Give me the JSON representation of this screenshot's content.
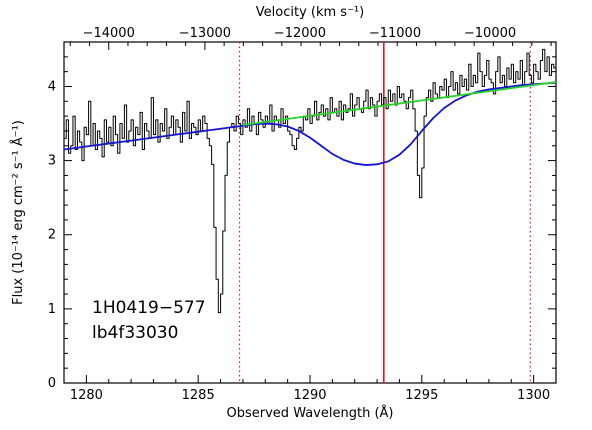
{
  "chart_data": {
    "type": "line",
    "xlabel": "Observed Wavelength (Å)",
    "ylabel": "Flux (10⁻¹⁴ erg cm⁻² s⁻¹ Å⁻¹)",
    "top_axis_label": "Velocity (km s⁻¹)",
    "xlim": [
      1279,
      1301
    ],
    "ylim": [
      0,
      4.6
    ],
    "x_ticks": [
      1280,
      1285,
      1290,
      1295,
      1300
    ],
    "y_ticks": [
      0,
      1,
      2,
      3,
      4
    ],
    "top_ticks": [
      {
        "label": "−14000",
        "x": 1281.0
      },
      {
        "label": "−13000",
        "x": 1285.3
      },
      {
        "label": "−12000",
        "x": 1289.55
      },
      {
        "label": "−11000",
        "x": 1293.8
      },
      {
        "label": "−10000",
        "x": 1298.05
      }
    ],
    "annotations": [
      "1H0419−577",
      "lb4f33030"
    ],
    "vertical_lines": [
      {
        "x": 1293.3,
        "style": "solid",
        "color": "#e8141e"
      },
      {
        "x": 1286.85,
        "style": "dotted",
        "color": "#e8141e"
      },
      {
        "x": 1299.85,
        "style": "dotted",
        "color": "#e8141e"
      }
    ],
    "series": [
      {
        "role": "spectrum",
        "color": "#000000",
        "step": true,
        "x": [
          1279.0,
          1279.1,
          1279.2,
          1279.3,
          1279.4,
          1279.5,
          1279.6,
          1279.7,
          1279.8,
          1279.9,
          1280.0,
          1280.1,
          1280.2,
          1280.3,
          1280.4,
          1280.5,
          1280.6,
          1280.7,
          1280.8,
          1280.9,
          1281.0,
          1281.1,
          1281.2,
          1281.3,
          1281.4,
          1281.5,
          1281.6,
          1281.7,
          1281.8,
          1281.9,
          1282.0,
          1282.1,
          1282.2,
          1282.3,
          1282.4,
          1282.5,
          1282.6,
          1282.7,
          1282.8,
          1282.9,
          1283.0,
          1283.1,
          1283.2,
          1283.3,
          1283.4,
          1283.5,
          1283.6,
          1283.7,
          1283.8,
          1283.9,
          1284.0,
          1284.1,
          1284.2,
          1284.3,
          1284.4,
          1284.5,
          1284.6,
          1284.7,
          1284.8,
          1284.9,
          1285.0,
          1285.1,
          1285.2,
          1285.3,
          1285.4,
          1285.5,
          1285.6,
          1285.7,
          1285.8,
          1285.9,
          1286.0,
          1286.1,
          1286.2,
          1286.3,
          1286.4,
          1286.5,
          1286.6,
          1286.7,
          1286.8,
          1286.9,
          1287.0,
          1287.1,
          1287.2,
          1287.3,
          1287.4,
          1287.5,
          1287.6,
          1287.7,
          1287.8,
          1287.9,
          1288.0,
          1288.1,
          1288.2,
          1288.3,
          1288.4,
          1288.5,
          1288.6,
          1288.7,
          1288.8,
          1288.9,
          1289.0,
          1289.1,
          1289.2,
          1289.3,
          1289.4,
          1289.5,
          1289.6,
          1289.7,
          1289.8,
          1289.9,
          1290.0,
          1290.1,
          1290.2,
          1290.3,
          1290.4,
          1290.5,
          1290.6,
          1290.7,
          1290.8,
          1290.9,
          1291.0,
          1291.1,
          1291.2,
          1291.3,
          1291.4,
          1291.5,
          1291.6,
          1291.7,
          1291.8,
          1291.9,
          1292.0,
          1292.1,
          1292.2,
          1292.3,
          1292.4,
          1292.5,
          1292.6,
          1292.7,
          1292.8,
          1292.9,
          1293.0,
          1293.1,
          1293.2,
          1293.3,
          1293.4,
          1293.5,
          1293.6,
          1293.7,
          1293.8,
          1293.9,
          1294.0,
          1294.1,
          1294.2,
          1294.3,
          1294.4,
          1294.5,
          1294.6,
          1294.7,
          1294.8,
          1294.9,
          1295.0,
          1295.1,
          1295.2,
          1295.3,
          1295.4,
          1295.5,
          1295.6,
          1295.7,
          1295.8,
          1295.9,
          1296.0,
          1296.1,
          1296.2,
          1296.3,
          1296.4,
          1296.5,
          1296.6,
          1296.7,
          1296.8,
          1296.9,
          1297.0,
          1297.1,
          1297.2,
          1297.3,
          1297.4,
          1297.5,
          1297.6,
          1297.7,
          1297.8,
          1297.9,
          1298.0,
          1298.1,
          1298.2,
          1298.3,
          1298.4,
          1298.5,
          1298.6,
          1298.7,
          1298.8,
          1298.9,
          1299.0,
          1299.1,
          1299.2,
          1299.3,
          1299.4,
          1299.5,
          1299.6,
          1299.7,
          1299.8,
          1299.9,
          1300.0,
          1300.1,
          1300.2,
          1300.3,
          1300.4,
          1300.5,
          1300.6,
          1300.7,
          1300.8,
          1300.9
        ],
        "y": [
          3.3,
          3.55,
          3.1,
          3.2,
          3.6,
          3.15,
          3.4,
          3.25,
          3.0,
          3.45,
          3.35,
          3.8,
          3.2,
          3.5,
          3.15,
          3.4,
          3.3,
          3.05,
          3.55,
          3.25,
          3.45,
          3.2,
          3.6,
          3.35,
          3.1,
          3.5,
          3.3,
          3.75,
          3.25,
          3.4,
          3.55,
          3.2,
          3.45,
          3.35,
          3.65,
          3.15,
          3.5,
          3.4,
          3.3,
          3.85,
          3.35,
          3.55,
          3.25,
          3.5,
          3.4,
          3.7,
          3.3,
          3.45,
          3.6,
          3.35,
          3.55,
          3.45,
          3.25,
          3.65,
          3.4,
          3.8,
          3.3,
          3.5,
          3.45,
          3.35,
          3.55,
          3.4,
          3.6,
          3.5,
          3.3,
          3.2,
          2.95,
          2.1,
          1.4,
          0.95,
          1.2,
          2.05,
          2.8,
          3.25,
          3.45,
          3.5,
          3.4,
          3.6,
          3.5,
          3.35,
          3.55,
          3.45,
          3.7,
          3.4,
          3.6,
          3.5,
          3.35,
          3.65,
          3.55,
          3.45,
          3.6,
          3.5,
          3.75,
          3.4,
          3.6,
          3.55,
          3.45,
          3.7,
          3.5,
          3.6,
          3.4,
          3.35,
          3.2,
          3.15,
          3.3,
          3.45,
          3.4,
          3.6,
          3.55,
          3.7,
          3.5,
          3.6,
          3.8,
          3.55,
          3.65,
          3.75,
          3.6,
          3.7,
          3.55,
          3.85,
          3.65,
          3.7,
          3.6,
          3.8,
          3.55,
          3.75,
          3.65,
          3.7,
          3.9,
          3.6,
          3.75,
          3.85,
          3.7,
          3.65,
          3.8,
          3.95,
          3.7,
          3.85,
          3.75,
          3.6,
          3.8,
          3.9,
          3.75,
          3.85,
          3.7,
          3.95,
          3.8,
          3.9,
          3.75,
          4.0,
          3.85,
          3.9,
          3.8,
          3.7,
          3.85,
          3.95,
          3.7,
          3.4,
          2.8,
          2.5,
          2.9,
          3.6,
          3.85,
          3.95,
          3.8,
          4.05,
          3.9,
          3.85,
          4.0,
          3.95,
          4.1,
          3.85,
          4.0,
          4.2,
          3.95,
          4.05,
          3.9,
          4.15,
          4.0,
          4.1,
          3.95,
          4.3,
          4.0,
          4.15,
          4.05,
          4.45,
          4.2,
          4.0,
          4.15,
          4.35,
          4.1,
          4.05,
          3.9,
          4.2,
          4.4,
          4.05,
          4.15,
          4.0,
          4.25,
          4.1,
          4.3,
          4.05,
          4.2,
          4.1,
          4.35,
          4.0,
          4.2,
          4.45,
          4.15,
          4.05,
          4.3,
          4.2,
          4.1,
          4.35,
          4.5,
          4.2,
          4.4,
          4.15,
          4.3,
          4.25
        ]
      },
      {
        "role": "absorption-model",
        "color": "#1414d2",
        "x": [
          1279.0,
          1279.5,
          1280.0,
          1280.5,
          1281.0,
          1281.5,
          1282.0,
          1282.5,
          1283.0,
          1283.5,
          1284.0,
          1284.5,
          1285.0,
          1285.5,
          1286.0,
          1286.5,
          1287.0,
          1287.5,
          1288.0,
          1288.5,
          1289.0,
          1289.5,
          1290.0,
          1290.5,
          1291.0,
          1291.5,
          1292.0,
          1292.5,
          1293.0,
          1293.5,
          1294.0,
          1294.5,
          1295.0,
          1295.5,
          1296.0,
          1296.5,
          1297.0,
          1297.5,
          1298.0,
          1298.5,
          1299.0,
          1299.5,
          1300.0,
          1300.5,
          1301.0
        ],
        "y": [
          3.15,
          3.17,
          3.19,
          3.21,
          3.23,
          3.25,
          3.27,
          3.29,
          3.31,
          3.33,
          3.35,
          3.37,
          3.39,
          3.41,
          3.43,
          3.45,
          3.47,
          3.49,
          3.5,
          3.49,
          3.46,
          3.4,
          3.31,
          3.2,
          3.09,
          3.01,
          2.96,
          2.94,
          2.95,
          2.99,
          3.08,
          3.22,
          3.4,
          3.57,
          3.71,
          3.81,
          3.88,
          3.93,
          3.96,
          3.98,
          4.0,
          4.02,
          4.03,
          4.04,
          4.05
        ]
      },
      {
        "role": "continuum",
        "color": "#28d228",
        "x": [
          1287.0,
          1301.0
        ],
        "y": [
          3.48,
          4.06
        ]
      }
    ]
  }
}
